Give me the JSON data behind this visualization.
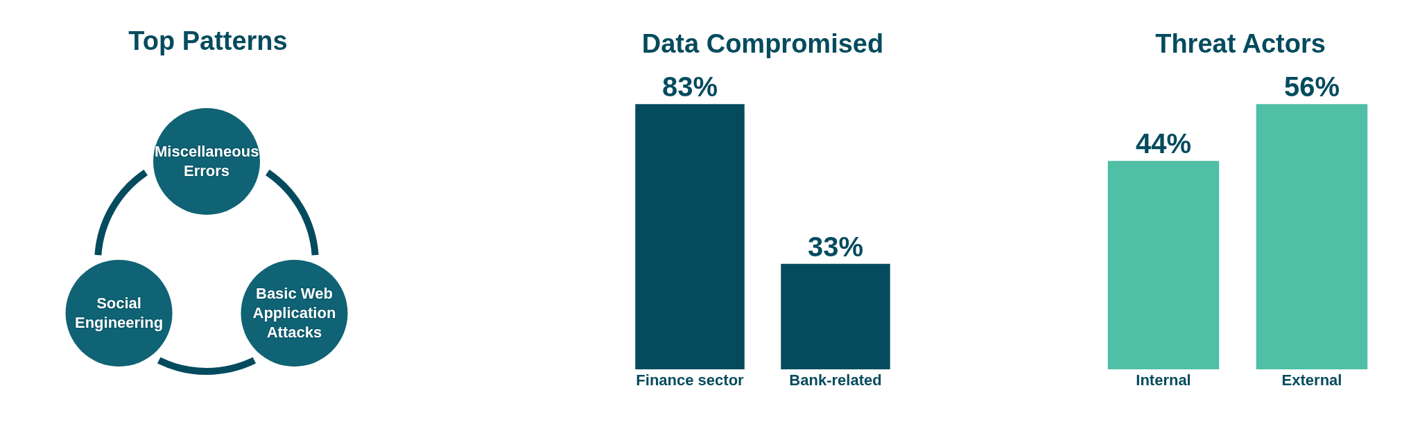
{
  "chart_data": [
    {
      "type": "other",
      "title": "Top Patterns",
      "annotations": [
        "Miscellaneous Errors",
        "Basic Web Application Attacks",
        "Social Engineering"
      ]
    },
    {
      "type": "bar",
      "title": "Data Compromised",
      "categories": [
        "Finance sector",
        "Bank-related"
      ],
      "values": [
        83,
        33
      ],
      "color": "#054b5e",
      "data_labels": true,
      "value_labels": [
        "83%",
        "33%"
      ]
    },
    {
      "type": "bar",
      "title": "Threat Actors",
      "categories": [
        "Internal",
        "External"
      ],
      "values": [
        44,
        56
      ],
      "color": "#4fbfa5",
      "data_labels": true,
      "value_labels": [
        "44%",
        "56%"
      ]
    }
  ]
}
